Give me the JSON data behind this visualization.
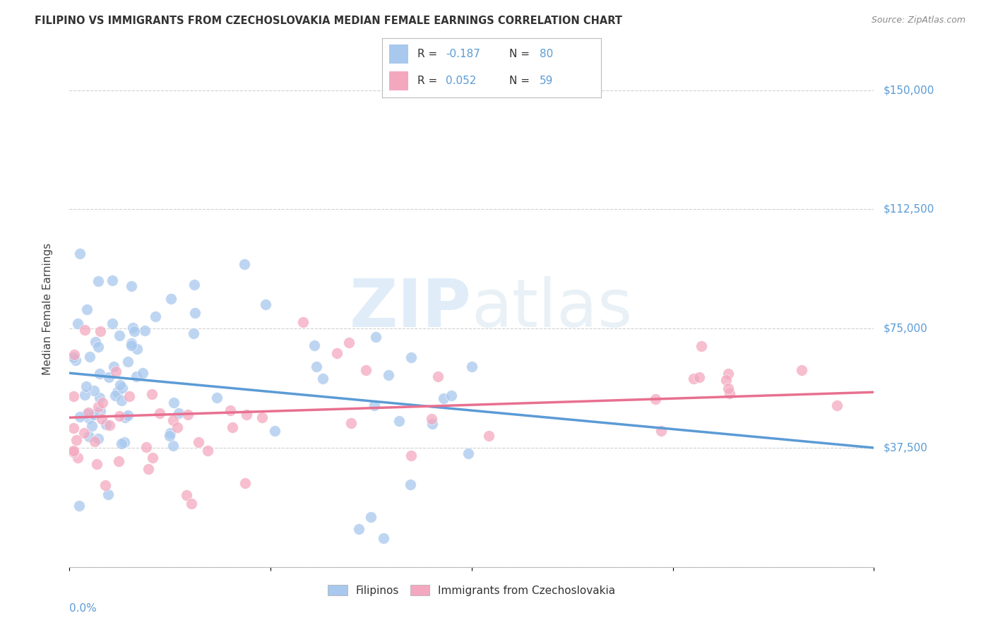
{
  "title": "FILIPINO VS IMMIGRANTS FROM CZECHOSLOVAKIA MEDIAN FEMALE EARNINGS CORRELATION CHART",
  "source": "Source: ZipAtlas.com",
  "ylabel": "Median Female Earnings",
  "xlim": [
    0.0,
    0.2
  ],
  "ylim": [
    0,
    162500
  ],
  "watermark_zip": "ZIP",
  "watermark_atlas": "atlas",
  "legend_filipinos": "Filipinos",
  "legend_czech": "Immigrants from Czechoslovakia",
  "R_filipinos": -0.187,
  "N_filipinos": 80,
  "R_czech": 0.052,
  "N_czech": 59,
  "color_filipinos": "#a8c8ee",
  "color_czech": "#f4a8c0",
  "color_line_filipinos": "#5b9bd5",
  "color_line_czech": "#e87090",
  "color_labels": "#5b9bd5",
  "background_color": "#ffffff",
  "trend_fil_x0": 0.0,
  "trend_fil_y0": 61000,
  "trend_fil_x1": 0.2,
  "trend_fil_y1": 37500,
  "trend_cze_x0": 0.0,
  "trend_cze_y0": 47000,
  "trend_cze_x1": 0.2,
  "trend_cze_y1": 55000
}
